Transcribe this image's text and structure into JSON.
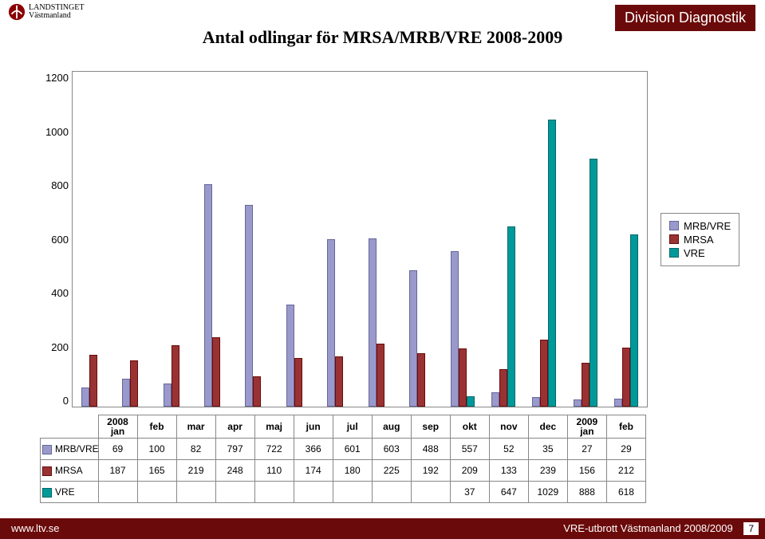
{
  "header": {
    "logo_line1": "LANDSTINGET",
    "logo_line2": "Västmanland",
    "division": "Division Diagnostik"
  },
  "chart": {
    "title": "Antal odlingar för MRSA/MRB/VRE 2008-2009",
    "type": "bar",
    "background_color": "#ffffff",
    "border_color": "#888888",
    "ylim": [
      0,
      1200
    ],
    "ytick_step": 200,
    "yticks": [
      "1200",
      "1000",
      "800",
      "600",
      "400",
      "200",
      "0"
    ],
    "categories": [
      "2008 jan",
      "feb",
      "mar",
      "apr",
      "maj",
      "jun",
      "jul",
      "aug",
      "sep",
      "okt",
      "nov",
      "dec",
      "2009 jan",
      "feb"
    ],
    "categories_twoline": [
      true,
      false,
      false,
      false,
      false,
      false,
      false,
      false,
      false,
      false,
      false,
      false,
      true,
      false
    ],
    "series": [
      {
        "key": "mrbvre",
        "label": "MRB/VRE",
        "fill": "#9999cc",
        "border": "#666699"
      },
      {
        "key": "mrsa",
        "label": "MRSA",
        "fill": "#993333",
        "border": "#6b0a0a"
      },
      {
        "key": "vre",
        "label": "VRE",
        "fill": "#009999",
        "border": "#006666"
      }
    ],
    "data": {
      "mrbvre": [
        "69",
        "100",
        "82",
        "797",
        "722",
        "366",
        "601",
        "603",
        "488",
        "557",
        "52",
        "35",
        "27",
        "29"
      ],
      "mrsa": [
        "187",
        "165",
        "219",
        "248",
        "110",
        "174",
        "180",
        "225",
        "192",
        "209",
        "133",
        "239",
        "156",
        "212"
      ],
      "vre": [
        "",
        "",
        "",
        "",
        "",
        "",
        "",
        "",
        "",
        "37",
        "647",
        "1029",
        "888",
        "618"
      ]
    }
  },
  "footer": {
    "left": "www.ltv.se",
    "right": "VRE-utbrott Västmanland 2008/2009",
    "page": "7"
  }
}
